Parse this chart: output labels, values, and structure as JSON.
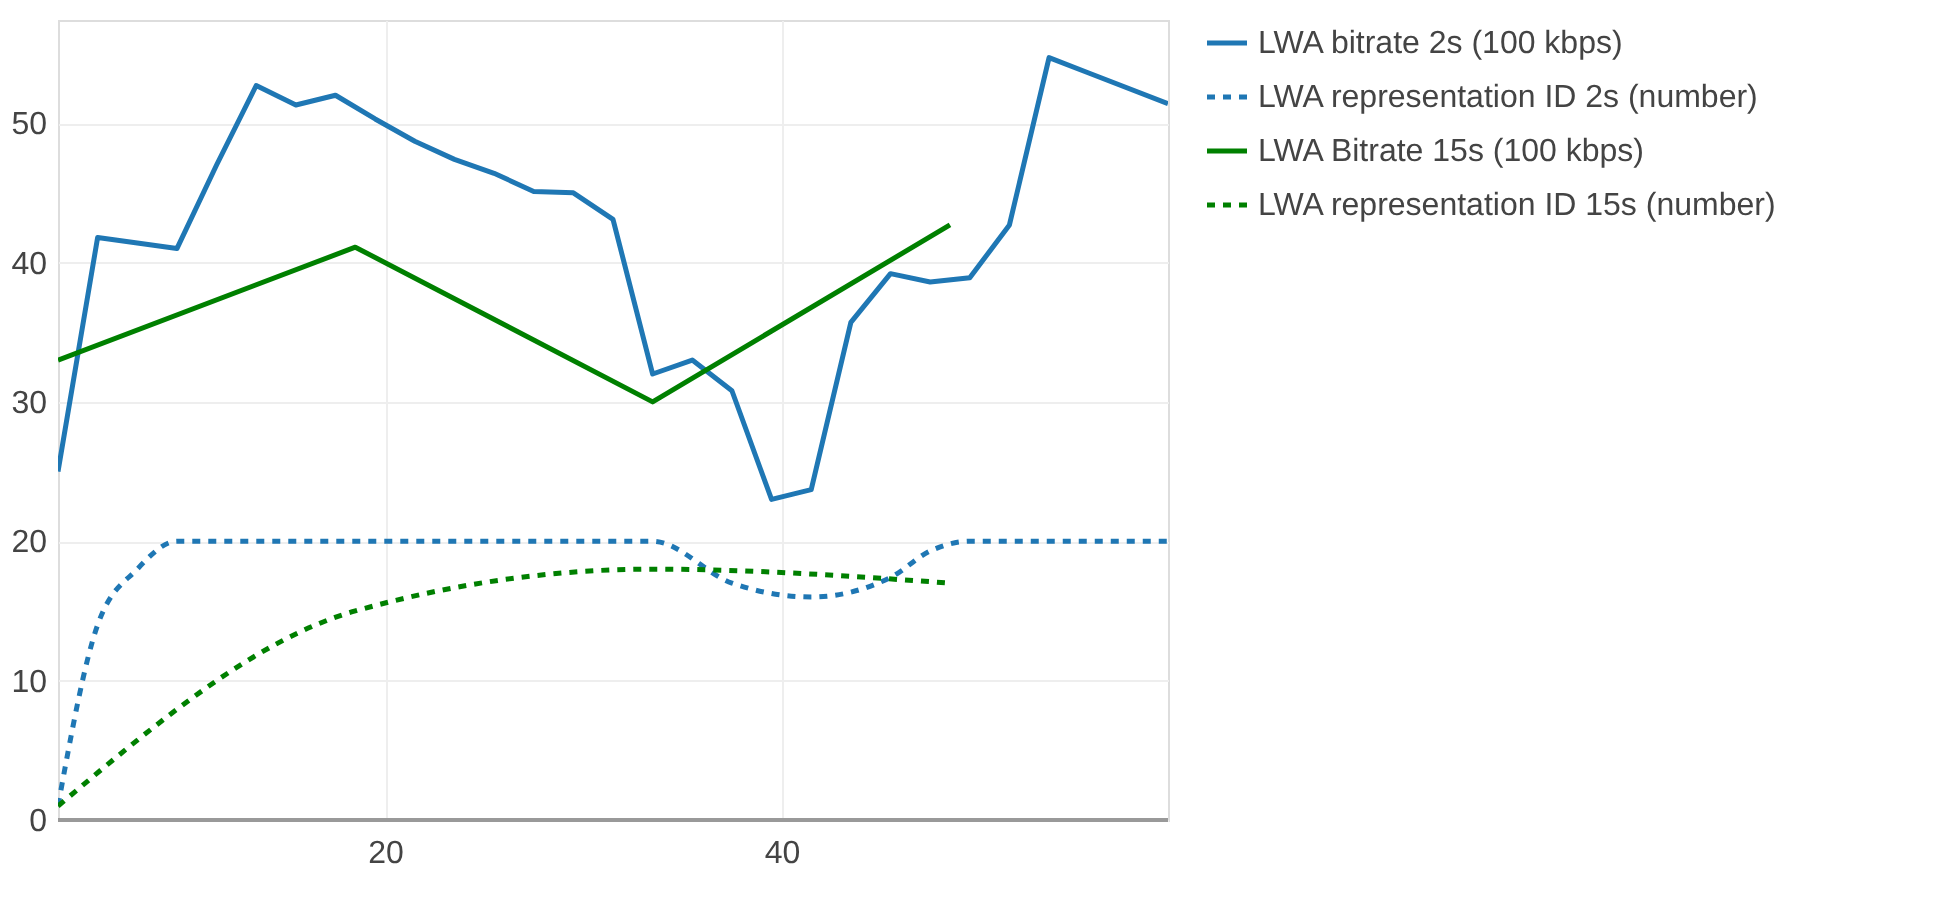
{
  "chart_data": {
    "type": "line",
    "xlim": [
      3.5,
      59.5
    ],
    "xticks": [
      20,
      40
    ],
    "ylim": [
      0,
      57.4
    ],
    "yticks": [
      0,
      10,
      20,
      30,
      40,
      50
    ],
    "grid": true,
    "legend": "top right",
    "marker": "none",
    "series": [
      {
        "name": "LWA bitrate 2s (100 kbps)",
        "color": "#1f77b4",
        "line_style": "solid",
        "x": [
          3.5,
          5.5,
          7.5,
          9.5,
          11.5,
          13.5,
          15.5,
          17.5,
          19.5,
          21.5,
          23.5,
          25.5,
          27.5,
          29.5,
          31.5,
          33.5,
          35.5,
          37.5,
          39.5,
          41.5,
          43.5,
          45.5,
          47.5,
          49.5,
          51.5,
          53.5,
          55.5,
          59.5
        ],
        "values": [
          25.0,
          41.8,
          41.4,
          41.0,
          47.0,
          52.7,
          51.3,
          52.0,
          50.3,
          48.7,
          47.4,
          46.4,
          45.1,
          45.0,
          43.1,
          32.0,
          33.0,
          30.8,
          23.0,
          23.7,
          35.7,
          39.2,
          38.6,
          38.9,
          42.7,
          54.7,
          53.6,
          51.4
        ]
      },
      {
        "name": "LWA representation ID 2s (number)",
        "color": "#1f77b4",
        "line_style": "dotted",
        "x": [
          3.5,
          5.5,
          7.5,
          9.5,
          13.5,
          17.5,
          21.5,
          25.5,
          29.5,
          33.5,
          37.5,
          41.5,
          45.5,
          47.5,
          49.5,
          53.5,
          59.5
        ],
        "values": [
          1,
          14,
          18,
          20,
          20,
          20,
          20,
          20,
          20,
          20,
          17,
          16,
          17.4,
          19.3,
          20,
          20,
          20
        ]
      },
      {
        "name": "LWA Bitrate 15s (100 kbps)",
        "color": "#008000",
        "line_style": "solid",
        "x": [
          3.5,
          18.5,
          33.5,
          48.5
        ],
        "values": [
          33,
          41.1,
          30,
          42.7
        ]
      },
      {
        "name": "LWA representation ID 15s (number)",
        "color": "#008000",
        "line_style": "dotted",
        "x": [
          3.5,
          18.5,
          33.5,
          48.5
        ],
        "values": [
          1,
          15,
          18,
          17
        ]
      }
    ]
  }
}
